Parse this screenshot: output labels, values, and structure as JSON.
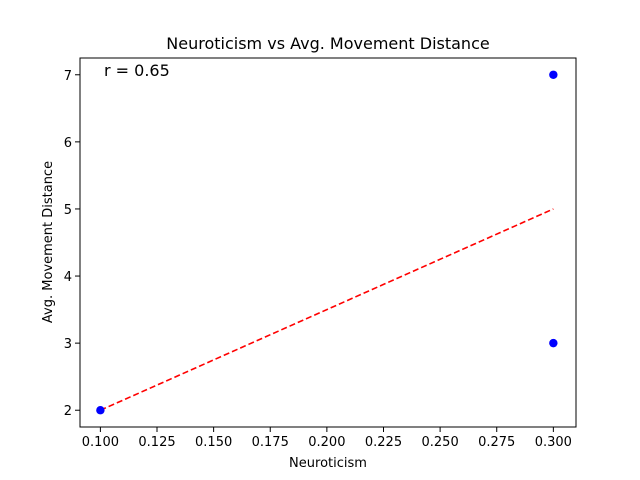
{
  "chart_data": {
    "type": "scatter",
    "title": "Neuroticism vs Avg. Movement Distance",
    "xlabel": "Neuroticism",
    "ylabel": "Avg. Movement Distance",
    "xlim": [
      0.091,
      0.31
    ],
    "ylim": [
      1.75,
      7.25
    ],
    "xticks": [
      0.1,
      0.125,
      0.15,
      0.175,
      0.2,
      0.225,
      0.25,
      0.275,
      0.3
    ],
    "xtick_labels": [
      "0.100",
      "0.125",
      "0.150",
      "0.175",
      "0.200",
      "0.225",
      "0.250",
      "0.275",
      "0.300"
    ],
    "yticks": [
      2,
      3,
      4,
      5,
      6,
      7
    ],
    "ytick_labels": [
      "2",
      "3",
      "4",
      "5",
      "6",
      "7"
    ],
    "grid": false,
    "points": [
      {
        "x": 0.1,
        "y": 2
      },
      {
        "x": 0.3,
        "y": 7
      },
      {
        "x": 0.3,
        "y": 3
      }
    ],
    "trendline": {
      "style": "dashed",
      "color": "#ff0000",
      "x": [
        0.1,
        0.3
      ],
      "y": [
        2,
        5
      ]
    },
    "annotation": {
      "text": "r = 0.65",
      "x": 0.1,
      "y": 7
    },
    "point_color": "#0000ff"
  }
}
